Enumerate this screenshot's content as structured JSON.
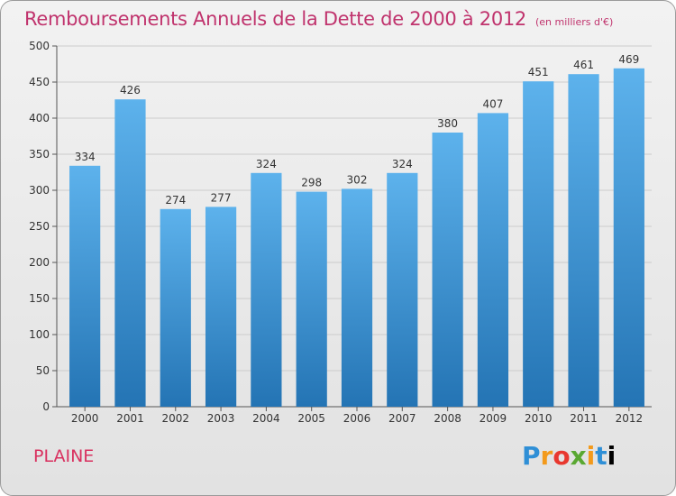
{
  "header": {
    "title": "Remboursements Annuels de la Dette de 2000 à 2012",
    "unit": "(en milliers d'€)"
  },
  "footer": {
    "commune": "PLAINE",
    "logo_letters": [
      "P",
      "r",
      "o",
      "x",
      "i",
      "t",
      "i"
    ]
  },
  "colors": {
    "title": "#c0336d",
    "bar_top": "#5db2ec",
    "bar_bottom": "#2474b4",
    "grid": "#cccccc"
  },
  "chart_data": {
    "type": "bar",
    "title": "Remboursements Annuels de la Dette de 2000 à 2012",
    "categories": [
      "2000",
      "2001",
      "2002",
      "2003",
      "2004",
      "2005",
      "2006",
      "2007",
      "2008",
      "2009",
      "2010",
      "2011",
      "2012"
    ],
    "values": [
      334,
      426,
      274,
      277,
      324,
      298,
      302,
      324,
      380,
      407,
      451,
      461,
      469
    ],
    "ylim": [
      0,
      500
    ],
    "yticks": [
      0,
      50,
      100,
      150,
      200,
      250,
      300,
      350,
      400,
      450,
      500
    ],
    "grid": true,
    "data_labels": true
  }
}
